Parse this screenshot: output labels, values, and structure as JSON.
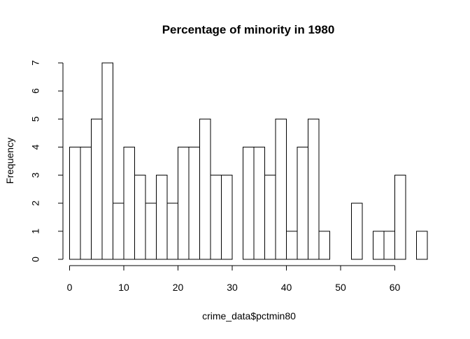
{
  "chart_data": {
    "type": "bar",
    "subtype": "histogram",
    "title": "Percentage of minority in 1980",
    "xlabel": "crime_data$pctmin80",
    "ylabel": "Frequency",
    "bin_width": 2,
    "bin_start": 0,
    "values": [
      4,
      4,
      5,
      7,
      2,
      4,
      3,
      2,
      3,
      2,
      4,
      4,
      5,
      3,
      3,
      0,
      4,
      4,
      3,
      5,
      1,
      4,
      5,
      1,
      0,
      0,
      2,
      0,
      1,
      1,
      3,
      0,
      1
    ],
    "xlim": [
      0,
      66
    ],
    "ylim": [
      0,
      7
    ],
    "xticks": [
      0,
      10,
      20,
      30,
      40,
      50,
      60
    ],
    "yticks": [
      0,
      1,
      2,
      3,
      4,
      5,
      6,
      7
    ],
    "bar_fill": "#ffffff",
    "bar_stroke": "#000000",
    "grid": false,
    "legend": "none"
  }
}
